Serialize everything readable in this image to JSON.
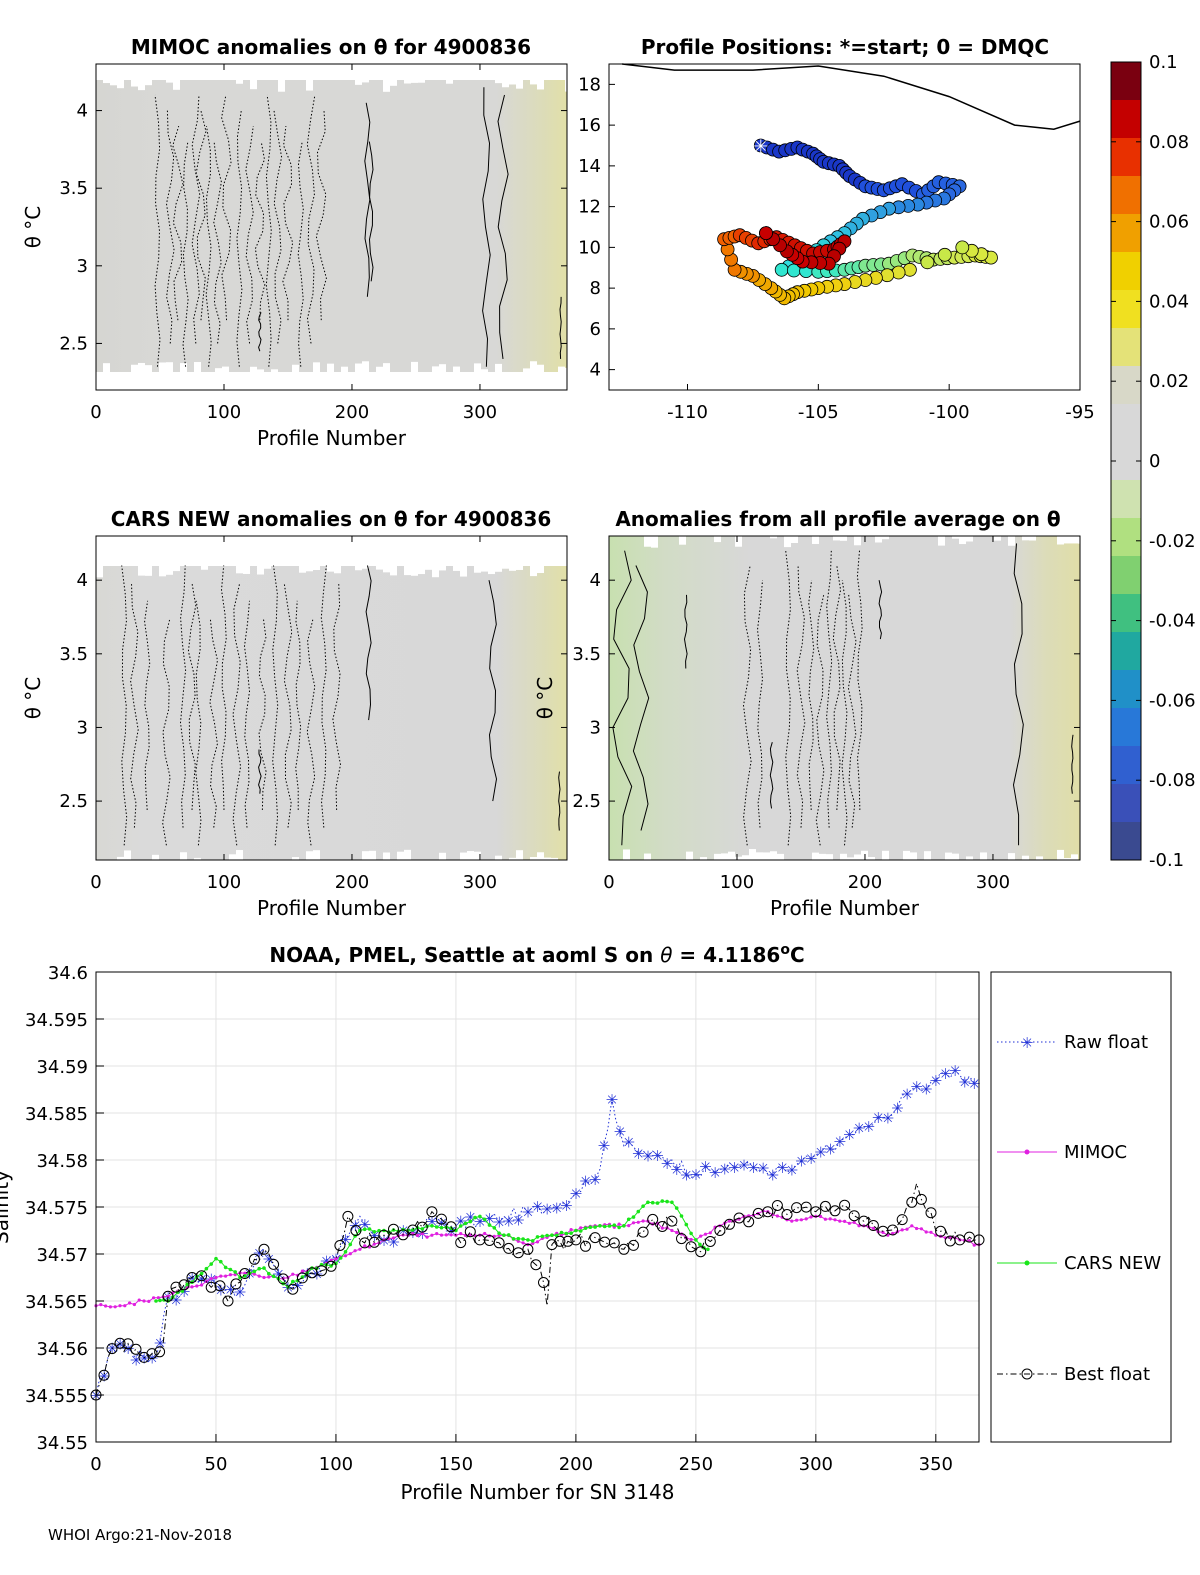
{
  "footer": "WHOI Argo:21-Nov-2018",
  "colors": {
    "raw": "#1f2fd6",
    "mimoc": "#e020e0",
    "cars": "#19e619",
    "best": "#000000"
  },
  "chart_data": [
    {
      "id": "mimoc",
      "type": "heatmap",
      "title": "MIMOC anomalies on θ  for 4900836",
      "xlabel": "Profile Number",
      "ylabel": "θ °C",
      "xlim": [
        0,
        368
      ],
      "ylim": [
        2.2,
        4.3
      ],
      "xticks": [
        0,
        100,
        200,
        300
      ],
      "yticks": [
        2.5,
        3,
        3.5,
        4
      ],
      "xtick_labels": [
        "0",
        "100",
        "200",
        "300"
      ],
      "ytick_labels": [
        "2.5",
        "3",
        "3.5",
        "4"
      ]
    },
    {
      "id": "positions",
      "type": "scatter",
      "title": "Profile Positions: *=start; 0 = DMQC",
      "xlim": [
        -113,
        -95
      ],
      "ylim": [
        3,
        19
      ],
      "xticks": [
        -110,
        -105,
        -100,
        -95
      ],
      "yticks": [
        4,
        6,
        8,
        10,
        12,
        14,
        16,
        18
      ],
      "xtick_labels": [
        "-110",
        "-105",
        "-100",
        "-95"
      ],
      "ytick_labels": [
        "4",
        "6",
        "8",
        "10",
        "12",
        "14",
        "16",
        "18"
      ],
      "track": [
        {
          "lon": -107.2,
          "lat": 15.0,
          "c": "#1a37c8"
        },
        {
          "lon": -106.5,
          "lat": 14.7,
          "c": "#1a37c8"
        },
        {
          "lon": -105.8,
          "lat": 14.9,
          "c": "#1a37c8"
        },
        {
          "lon": -105.2,
          "lat": 14.6,
          "c": "#1a37c8"
        },
        {
          "lon": -104.8,
          "lat": 14.2,
          "c": "#1a37c8"
        },
        {
          "lon": -104.2,
          "lat": 14.0,
          "c": "#1a37c8"
        },
        {
          "lon": -103.8,
          "lat": 13.5,
          "c": "#1a37c8"
        },
        {
          "lon": -103.2,
          "lat": 13.0,
          "c": "#2050dc"
        },
        {
          "lon": -102.5,
          "lat": 12.8,
          "c": "#2050dc"
        },
        {
          "lon": -101.8,
          "lat": 13.1,
          "c": "#2050dc"
        },
        {
          "lon": -101.0,
          "lat": 12.6,
          "c": "#2560e0"
        },
        {
          "lon": -100.4,
          "lat": 13.2,
          "c": "#2560e0"
        },
        {
          "lon": -99.6,
          "lat": 13.0,
          "c": "#2a68e0"
        },
        {
          "lon": -100.2,
          "lat": 12.4,
          "c": "#2a78e0"
        },
        {
          "lon": -101.2,
          "lat": 12.1,
          "c": "#2a88e0"
        },
        {
          "lon": -102.3,
          "lat": 11.9,
          "c": "#30a0e0"
        },
        {
          "lon": -103.3,
          "lat": 11.4,
          "c": "#30b0e0"
        },
        {
          "lon": -104.0,
          "lat": 10.7,
          "c": "#30c0e0"
        },
        {
          "lon": -104.8,
          "lat": 10.1,
          "c": "#30d0d8"
        },
        {
          "lon": -105.6,
          "lat": 9.4,
          "c": "#30dede"
        },
        {
          "lon": -106.4,
          "lat": 8.9,
          "c": "#30e6d0"
        },
        {
          "lon": -105.0,
          "lat": 8.8,
          "c": "#40e8c0"
        },
        {
          "lon": -104.0,
          "lat": 8.9,
          "c": "#60e8a8"
        },
        {
          "lon": -103.2,
          "lat": 9.1,
          "c": "#80e890"
        },
        {
          "lon": -102.3,
          "lat": 9.2,
          "c": "#98e880"
        },
        {
          "lon": -101.4,
          "lat": 9.6,
          "c": "#b0e870"
        },
        {
          "lon": -100.6,
          "lat": 9.4,
          "c": "#c0e860"
        },
        {
          "lon": -99.8,
          "lat": 9.5,
          "c": "#d0e850"
        },
        {
          "lon": -99.0,
          "lat": 9.6,
          "c": "#d8e840"
        },
        {
          "lon": -98.4,
          "lat": 9.5,
          "c": "#d8e840"
        },
        {
          "lon": -99.5,
          "lat": 10.0,
          "c": "#c8e848"
        },
        {
          "lon": -101.5,
          "lat": 8.9,
          "c": "#e0e030"
        },
        {
          "lon": -102.8,
          "lat": 8.5,
          "c": "#e8d820"
        },
        {
          "lon": -104.0,
          "lat": 8.2,
          "c": "#f0d010"
        },
        {
          "lon": -105.0,
          "lat": 8.0,
          "c": "#f0c800"
        },
        {
          "lon": -105.8,
          "lat": 7.8,
          "c": "#f0c000"
        },
        {
          "lon": -106.3,
          "lat": 7.5,
          "c": "#f0b800"
        },
        {
          "lon": -106.8,
          "lat": 8.0,
          "c": "#f0a800"
        },
        {
          "lon": -107.5,
          "lat": 8.6,
          "c": "#f09000"
        },
        {
          "lon": -108.2,
          "lat": 8.9,
          "c": "#f07800"
        },
        {
          "lon": -108.6,
          "lat": 10.4,
          "c": "#f06000"
        },
        {
          "lon": -108.0,
          "lat": 10.6,
          "c": "#e84000"
        },
        {
          "lon": -107.3,
          "lat": 10.2,
          "c": "#e02800"
        },
        {
          "lon": -106.6,
          "lat": 10.5,
          "c": "#d81800"
        },
        {
          "lon": -105.9,
          "lat": 10.1,
          "c": "#d01000"
        },
        {
          "lon": -105.2,
          "lat": 9.7,
          "c": "#c80800"
        },
        {
          "lon": -104.4,
          "lat": 9.9,
          "c": "#c00000"
        },
        {
          "lon": -104.0,
          "lat": 10.3,
          "c": "#b80000"
        },
        {
          "lon": -104.6,
          "lat": 9.2,
          "c": "#c00000"
        },
        {
          "lon": -105.6,
          "lat": 9.3,
          "c": "#c80000"
        },
        {
          "lon": -106.2,
          "lat": 9.8,
          "c": "#b80000"
        },
        {
          "lon": -107.0,
          "lat": 10.7,
          "c": "#c80000"
        }
      ],
      "coast": [
        [
          -112.5,
          19.0
        ],
        [
          -110.5,
          18.7
        ],
        [
          -107.5,
          18.7
        ],
        [
          -105.0,
          18.9
        ],
        [
          -102.5,
          18.4
        ],
        [
          -100.0,
          17.4
        ],
        [
          -97.5,
          16.0
        ],
        [
          -96.0,
          15.8
        ],
        [
          -95.0,
          16.2
        ]
      ]
    },
    {
      "id": "colorbar",
      "type": "colorbar",
      "ticks": [
        0.1,
        0.08,
        0.06,
        0.04,
        0.02,
        0,
        -0.02,
        -0.04,
        -0.06,
        -0.08,
        -0.1
      ],
      "tick_labels": [
        "0.1",
        "0.08",
        "0.06",
        "0.04",
        "0.02",
        "0",
        "-0.02",
        "-0.04",
        "-0.06",
        "-0.08",
        "-0.1"
      ]
    },
    {
      "id": "cars",
      "type": "heatmap",
      "title": "CARS NEW anomalies on θ for 4900836",
      "xlabel": "Profile Number",
      "ylabel": "θ °C",
      "xlim": [
        0,
        368
      ],
      "ylim": [
        2.1,
        4.3
      ],
      "xticks": [
        0,
        100,
        200,
        300
      ],
      "yticks": [
        2.5,
        3,
        3.5,
        4
      ],
      "xtick_labels": [
        "0",
        "100",
        "200",
        "300"
      ],
      "ytick_labels": [
        "2.5",
        "3",
        "3.5",
        "4"
      ]
    },
    {
      "id": "allavg",
      "type": "heatmap",
      "title": "Anomalies from all profile average on θ",
      "xlabel": "Profile Number",
      "ylabel": "θ °C",
      "xlim": [
        0,
        368
      ],
      "ylim": [
        2.1,
        4.3
      ],
      "xticks": [
        0,
        100,
        200,
        300
      ],
      "yticks": [
        2.5,
        3,
        3.5,
        4
      ],
      "xtick_labels": [
        "0",
        "100",
        "200",
        "300"
      ],
      "ytick_labels": [
        "2.5",
        "3",
        "3.5",
        "4"
      ]
    },
    {
      "id": "salinity",
      "type": "line",
      "title_prefix": "NOAA, PMEL, Seattle at aoml S on ",
      "title_theta": "θ",
      "title_value": " = 4.1186",
      "title_deg": "o",
      "title_unit": "C",
      "xlabel": "Profile Number for SN 3148",
      "ylabel": "Salinity",
      "xlim": [
        0,
        368
      ],
      "ylim": [
        34.55,
        34.6
      ],
      "xticks": [
        0,
        50,
        100,
        150,
        200,
        250,
        300,
        350
      ],
      "xtick_labels": [
        "0",
        "50",
        "100",
        "150",
        "200",
        "250",
        "300",
        "350"
      ],
      "yticks": [
        34.55,
        34.555,
        34.56,
        34.565,
        34.57,
        34.575,
        34.58,
        34.585,
        34.59,
        34.595,
        34.6
      ],
      "ytick_labels": [
        "34.55",
        "34.555",
        "34.56",
        "34.565",
        "34.57",
        "34.575",
        "34.58",
        "34.585",
        "34.59",
        "34.595",
        "34.6"
      ],
      "legend": [
        "Raw float",
        "MIMOC",
        "CARS NEW",
        "Best float"
      ],
      "series": [
        {
          "name": "Raw float",
          "x": [
            0,
            5,
            10,
            15,
            20,
            25,
            30,
            35,
            40,
            50,
            60,
            70,
            80,
            90,
            100,
            110,
            120,
            130,
            140,
            150,
            160,
            170,
            180,
            190,
            200,
            210,
            215,
            220,
            230,
            240,
            250,
            260,
            270,
            280,
            290,
            300,
            310,
            320,
            330,
            340,
            350,
            360,
            368
          ],
          "values": [
            34.555,
            34.559,
            34.5605,
            34.5595,
            34.559,
            34.559,
            34.5655,
            34.566,
            34.5675,
            34.567,
            34.566,
            34.5705,
            34.5665,
            34.568,
            34.5695,
            34.574,
            34.5715,
            34.572,
            34.5735,
            34.573,
            34.5735,
            34.574,
            34.5745,
            34.575,
            34.5765,
            34.579,
            34.5865,
            34.5815,
            34.5805,
            34.58,
            34.5785,
            34.579,
            34.5795,
            34.5785,
            34.579,
            34.5805,
            34.582,
            34.5835,
            34.5845,
            34.5875,
            34.5885,
            34.589,
            34.5885
          ]
        },
        {
          "name": "MIMOC",
          "x": [
            0,
            10,
            20,
            30,
            40,
            50,
            60,
            70,
            80,
            90,
            100,
            110,
            120,
            130,
            140,
            150,
            160,
            170,
            180,
            190,
            200,
            210,
            220,
            230,
            240,
            250,
            260,
            270,
            280,
            290,
            300,
            310,
            320,
            330,
            340,
            350,
            360,
            368
          ],
          "values": [
            34.5645,
            34.5645,
            34.565,
            34.5655,
            34.5665,
            34.5675,
            34.568,
            34.5675,
            34.5675,
            34.5685,
            34.5695,
            34.5705,
            34.5715,
            34.572,
            34.572,
            34.572,
            34.572,
            34.572,
            34.571,
            34.572,
            34.5725,
            34.573,
            34.573,
            34.5735,
            34.5725,
            34.5715,
            34.573,
            34.574,
            34.5745,
            34.5735,
            34.574,
            34.5735,
            34.573,
            34.572,
            34.573,
            34.572,
            34.5715,
            34.571
          ]
        },
        {
          "name": "CARS NEW",
          "x": [
            25,
            30,
            40,
            50,
            60,
            70,
            80,
            90,
            100,
            110,
            120,
            130,
            140,
            150,
            160,
            170,
            180,
            190,
            200,
            210,
            220,
            230,
            240,
            250,
            255
          ],
          "values": [
            34.565,
            34.565,
            34.567,
            34.5695,
            34.5675,
            34.5685,
            34.5665,
            34.5685,
            34.569,
            34.5725,
            34.5725,
            34.5725,
            34.573,
            34.5725,
            34.574,
            34.572,
            34.5715,
            34.572,
            34.5725,
            34.573,
            34.573,
            34.5755,
            34.5755,
            34.5715,
            34.5705
          ]
        },
        {
          "name": "Best float",
          "x": [
            0,
            5,
            10,
            15,
            20,
            25,
            28,
            30,
            35,
            40,
            50,
            55,
            60,
            70,
            80,
            90,
            100,
            105,
            110,
            120,
            130,
            140,
            150,
            160,
            170,
            180,
            185,
            188,
            190,
            195,
            200,
            210,
            220,
            230,
            240,
            250,
            260,
            270,
            280,
            290,
            300,
            310,
            320,
            330,
            340,
            342,
            350,
            360,
            368
          ],
          "values": [
            34.555,
            34.559,
            34.5605,
            34.5595,
            34.559,
            34.559,
            34.5605,
            34.5655,
            34.566,
            34.5675,
            34.567,
            34.565,
            34.567,
            34.5705,
            34.5665,
            34.568,
            34.5695,
            34.574,
            34.5715,
            34.572,
            34.572,
            34.5745,
            34.572,
            34.5715,
            34.5705,
            34.5705,
            34.5685,
            34.5645,
            34.571,
            34.5705,
            34.5715,
            34.5715,
            34.5705,
            34.573,
            34.5735,
            34.5705,
            34.5725,
            34.5735,
            34.5745,
            34.5745,
            34.5745,
            34.575,
            34.5735,
            34.5725,
            34.5755,
            34.5775,
            34.5725,
            34.5715,
            34.5715
          ]
        }
      ]
    }
  ]
}
